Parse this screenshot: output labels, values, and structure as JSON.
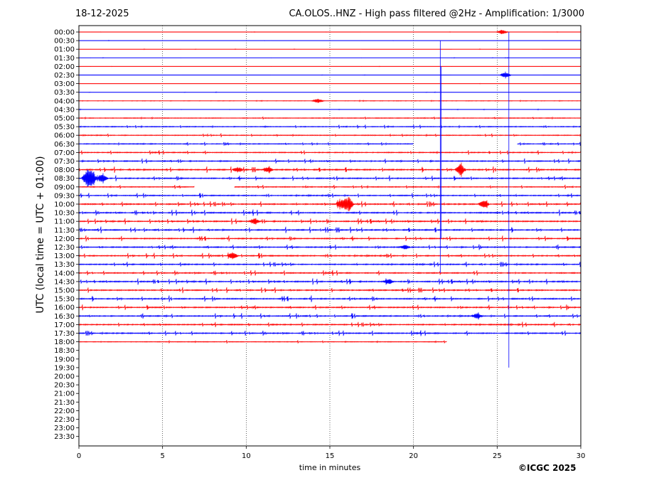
{
  "header": {
    "date": "18-12-2025",
    "title": "CA.OLOS..HNZ - High pass filtered @2Hz - Amplification: 1/3000"
  },
  "footer": {
    "copyright": "©ICGC 2025"
  },
  "chart_data": {
    "type": "line",
    "title": "CA.OLOS..HNZ - High pass filtered @2Hz - Amplification: 1/3000",
    "xlabel": "time in minutes",
    "ylabel": "UTC (local time = UTC + 01:00)",
    "xlim": [
      0,
      30
    ],
    "xticks": [
      0,
      5,
      10,
      15,
      20,
      25,
      30
    ],
    "row_labels": [
      "00:00",
      "00:30",
      "01:00",
      "01:30",
      "02:00",
      "02:30",
      "03:00",
      "03:30",
      "04:00",
      "04:30",
      "05:00",
      "05:30",
      "06:00",
      "06:30",
      "07:00",
      "07:30",
      "08:00",
      "08:30",
      "09:00",
      "09:30",
      "10:00",
      "10:30",
      "11:00",
      "11:30",
      "12:00",
      "12:30",
      "13:00",
      "13:30",
      "14:00",
      "14:30",
      "15:00",
      "15:30",
      "16:00",
      "16:30",
      "17:00",
      "17:30",
      "18:00",
      "18:30",
      "19:00",
      "19:30",
      "20:00",
      "20:30",
      "21:00",
      "21:30",
      "22:00",
      "22:30",
      "23:00",
      "23:30"
    ],
    "colors": {
      "even_rows": "#ff0000",
      "odd_rows": "#0000ff"
    },
    "grid": "vertical dotted lines every 5 minutes",
    "last_trace": {
      "row": "18:00",
      "end_minute": 22.0
    },
    "trace_gaps": [
      {
        "row": "06:30",
        "from_minute": 20.0,
        "to_minute": 26.2
      },
      {
        "row": "09:00",
        "from_minute": 6.9,
        "to_minute": 9.3
      }
    ],
    "activity_by_row": [
      0.1,
      0.1,
      0.1,
      0.1,
      0.1,
      0.15,
      0.1,
      0.1,
      0.2,
      0.15,
      0.5,
      0.6,
      0.6,
      0.6,
      0.7,
      0.8,
      1.0,
      0.9,
      0.7,
      0.8,
      1.0,
      1.0,
      1.0,
      1.0,
      0.9,
      0.9,
      0.9,
      0.9,
      0.9,
      1.0,
      0.9,
      1.0,
      0.9,
      0.9,
      0.9,
      0.9,
      0.5
    ],
    "events": [
      {
        "row": "00:00",
        "minute": 25.3,
        "amp": 0.5
      },
      {
        "row": "02:30",
        "minute": 25.5,
        "amp": 0.7
      },
      {
        "row": "04:00",
        "minute": 14.3,
        "amp": 0.5
      },
      {
        "row": "08:00",
        "minute": 9.5,
        "amp": 0.6
      },
      {
        "row": "08:00",
        "minute": 11.3,
        "amp": 0.6
      },
      {
        "row": "08:00",
        "minute": 22.8,
        "amp": 1.2
      },
      {
        "row": "08:30",
        "minute": 0.5,
        "amp": 1.8
      },
      {
        "row": "08:30",
        "minute": 0.8,
        "amp": 1.4
      },
      {
        "row": "08:30",
        "minute": 1.4,
        "amp": 1.2
      },
      {
        "row": "10:00",
        "minute": 15.7,
        "amp": 1.0
      },
      {
        "row": "10:00",
        "minute": 16.1,
        "amp": 1.6
      },
      {
        "row": "10:00",
        "minute": 24.2,
        "amp": 1.0
      },
      {
        "row": "11:00",
        "minute": 10.5,
        "amp": 0.7
      },
      {
        "row": "12:30",
        "minute": 19.5,
        "amp": 0.5
      },
      {
        "row": "13:00",
        "minute": 9.2,
        "amp": 0.8
      },
      {
        "row": "14:30",
        "minute": 18.5,
        "amp": 0.6
      },
      {
        "row": "16:30",
        "minute": 23.8,
        "amp": 0.6
      }
    ],
    "spikes": [
      {
        "minute": 21.6,
        "from_row": "00:30",
        "to_row": "14:00",
        "color": "#0000ff"
      },
      {
        "minute": 21.65,
        "from_row": "02:00",
        "to_row": "12:00",
        "color": "#0000ff"
      },
      {
        "minute": 25.7,
        "from_row": "00:00",
        "to_row": "19:30",
        "color": "#0000ff"
      }
    ]
  }
}
